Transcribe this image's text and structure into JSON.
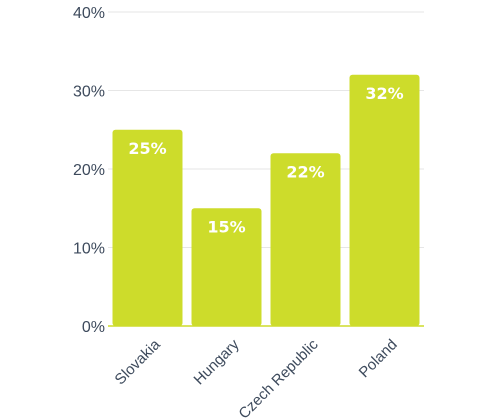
{
  "chart_data": {
    "type": "bar",
    "categories": [
      "Slovakia",
      "Hungary",
      "Czech Republic",
      "Poland"
    ],
    "values": [
      25,
      15,
      22,
      32
    ],
    "data_labels": [
      "25%",
      "15%",
      "22%",
      "32%"
    ],
    "yticks": [
      0,
      10,
      20,
      30,
      40
    ],
    "ytick_labels": [
      "0%",
      "10%",
      "20%",
      "30%",
      "40%"
    ],
    "ylim": [
      0,
      40
    ],
    "grid": true,
    "legend": "none",
    "colors": {
      "bar": "#cddc2b",
      "grid": "#e6e6e6",
      "baseline": "#cddc2b",
      "text": "#3d4a5c",
      "data_label": "#ffffff"
    }
  }
}
